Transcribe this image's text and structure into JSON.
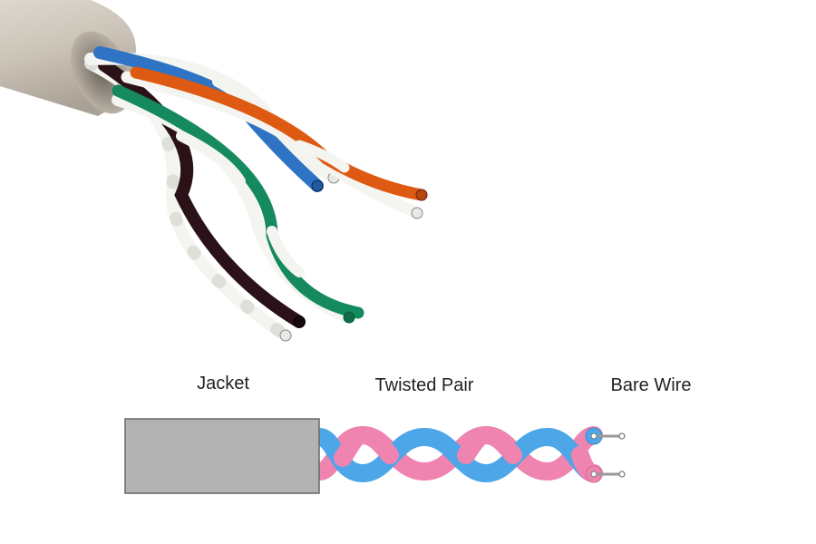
{
  "labels": {
    "jacket": "Jacket",
    "twisted_pair": "Twisted Pair",
    "bare_wire": "Bare Wire"
  },
  "colors": {
    "jacket_fill": "#b3b3b3",
    "jacket_stroke": "#666666",
    "pair_blue": "#4da6e8",
    "pair_pink": "#ef84b0",
    "bare_wire": "#999999",
    "photo_jacket": "#cfc8bd",
    "wire_blue": "#2f74c4",
    "wire_orange": "#de5a12",
    "wire_green": "#148a5e",
    "wire_brown": "#2a1218",
    "wire_white": "#f4f4f0"
  },
  "photo": {
    "subject": "cable with four twisted pairs",
    "pairs": [
      "blue",
      "orange",
      "green",
      "brown"
    ]
  }
}
